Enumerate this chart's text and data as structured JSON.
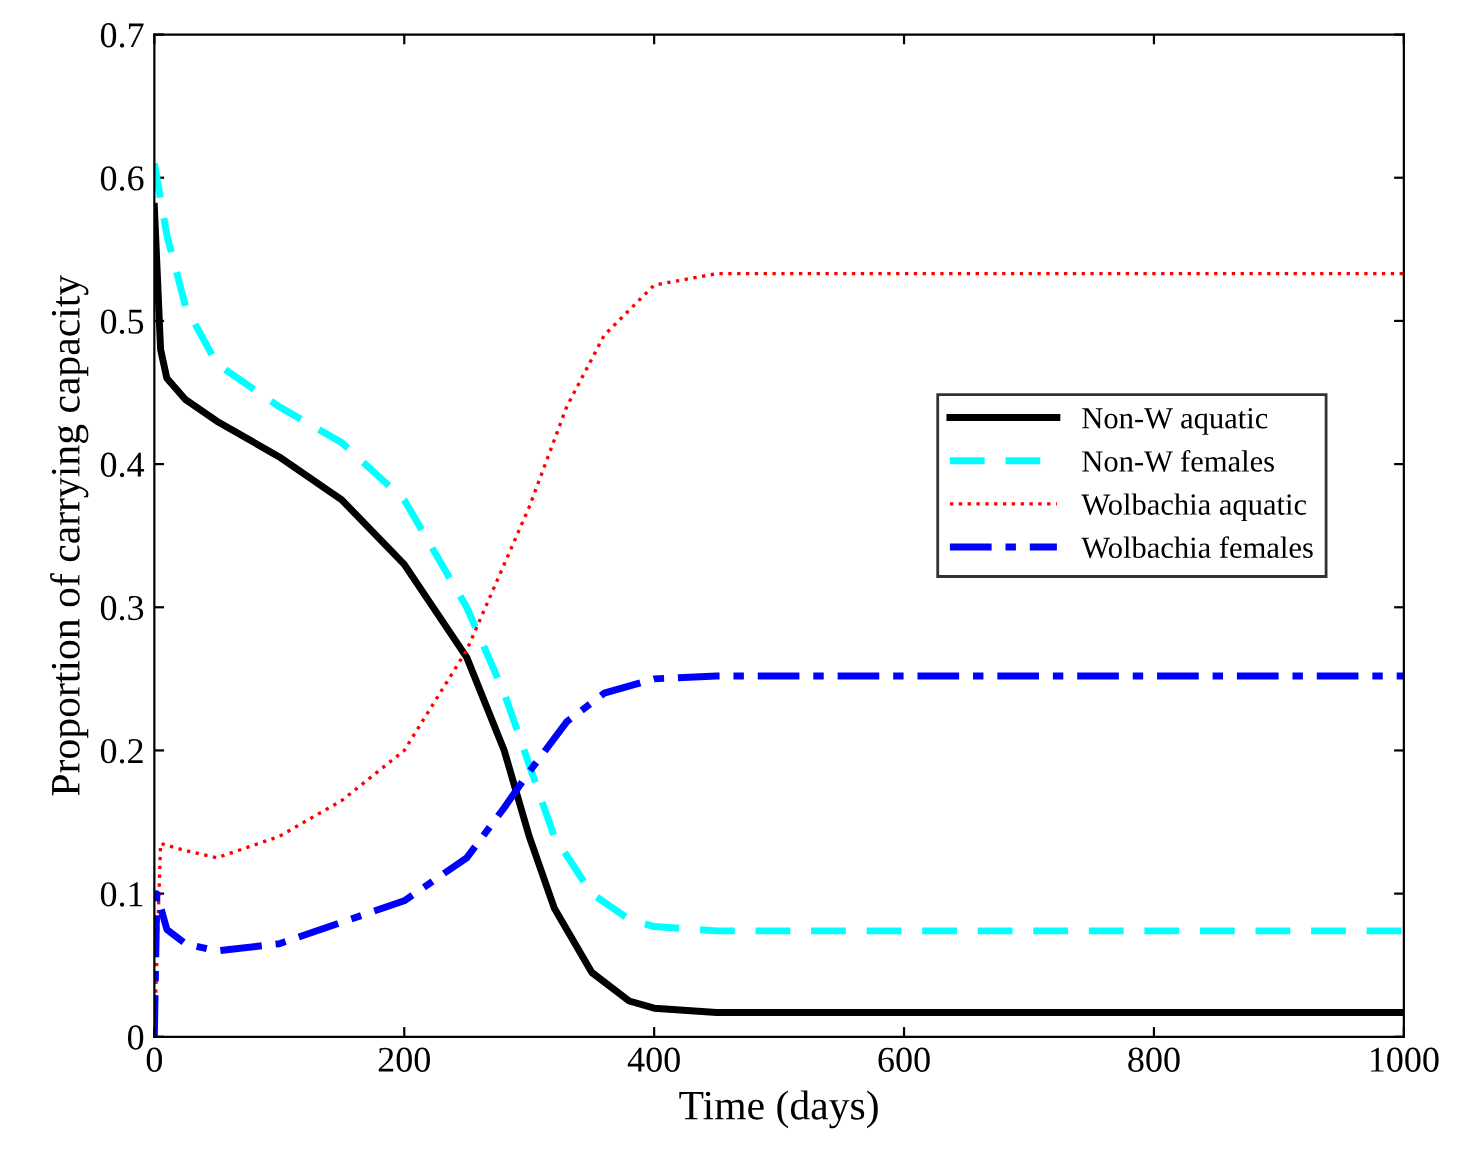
{
  "chart_data": {
    "type": "line",
    "xlabel": "Time (days)",
    "ylabel": "Proportion of carrying capacity",
    "xlim": [
      0,
      1000
    ],
    "ylim": [
      0,
      0.7
    ],
    "xticks": [
      0,
      200,
      400,
      600,
      800,
      1000
    ],
    "yticks": [
      0,
      0.1,
      0.2,
      0.3,
      0.4,
      0.5,
      0.6,
      0.7
    ],
    "grid": false,
    "legend": "right",
    "marker": "none",
    "series": [
      {
        "name": "Non-W aquatic",
        "color": "#000000",
        "line_style": "solid",
        "x": [
          0,
          5,
          10,
          25,
          50,
          100,
          150,
          200,
          250,
          280,
          300,
          320,
          350,
          380,
          400,
          450,
          1000
        ],
        "values": [
          0.58,
          0.48,
          0.46,
          0.445,
          0.43,
          0.405,
          0.375,
          0.33,
          0.265,
          0.2,
          0.14,
          0.09,
          0.045,
          0.025,
          0.02,
          0.017,
          0.017
        ]
      },
      {
        "name": "Non-W females",
        "color": "#00ffff",
        "line_style": "dashed",
        "x": [
          0,
          10,
          25,
          50,
          100,
          150,
          200,
          250,
          280,
          300,
          320,
          350,
          380,
          400,
          450,
          1000
        ],
        "values": [
          0.61,
          0.56,
          0.51,
          0.47,
          0.44,
          0.415,
          0.375,
          0.3,
          0.24,
          0.19,
          0.14,
          0.1,
          0.082,
          0.077,
          0.074,
          0.074
        ]
      },
      {
        "name": "Wolbachia aquatic",
        "color": "#ff0000",
        "line_style": "dotted",
        "x": [
          0,
          5,
          25,
          50,
          100,
          150,
          200,
          250,
          300,
          330,
          360,
          400,
          450,
          1000
        ],
        "values": [
          0,
          0.135,
          0.13,
          0.125,
          0.14,
          0.165,
          0.2,
          0.27,
          0.37,
          0.44,
          0.49,
          0.525,
          0.533,
          0.533
        ]
      },
      {
        "name": "Wolbachia females",
        "color": "#0000ff",
        "line_style": "dashdot",
        "x": [
          0,
          2,
          10,
          25,
          50,
          100,
          150,
          200,
          250,
          280,
          300,
          330,
          360,
          400,
          450,
          1000
        ],
        "values": [
          0,
          0.1,
          0.075,
          0.065,
          0.06,
          0.065,
          0.08,
          0.095,
          0.125,
          0.16,
          0.185,
          0.22,
          0.24,
          0.25,
          0.252,
          0.252
        ]
      }
    ]
  }
}
